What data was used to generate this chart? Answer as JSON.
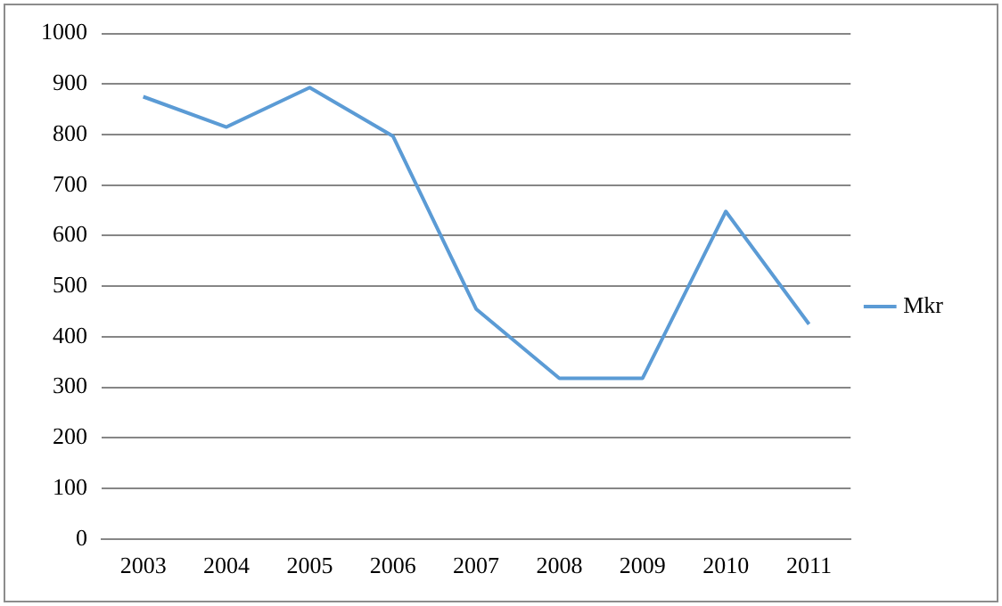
{
  "chart_data": {
    "type": "line",
    "categories": [
      "2003",
      "2004",
      "2005",
      "2006",
      "2007",
      "2008",
      "2009",
      "2010",
      "2011"
    ],
    "series": [
      {
        "name": "Mkr",
        "color": "#5b9bd5",
        "values": [
          875,
          815,
          893,
          797,
          455,
          318,
          318,
          648,
          425
        ]
      }
    ],
    "ylim": [
      0,
      1000
    ],
    "yticks": [
      0,
      100,
      200,
      300,
      400,
      500,
      600,
      700,
      800,
      900,
      1000
    ],
    "grid": "y",
    "legend": "right",
    "marker": "none",
    "line_style": "solid"
  }
}
